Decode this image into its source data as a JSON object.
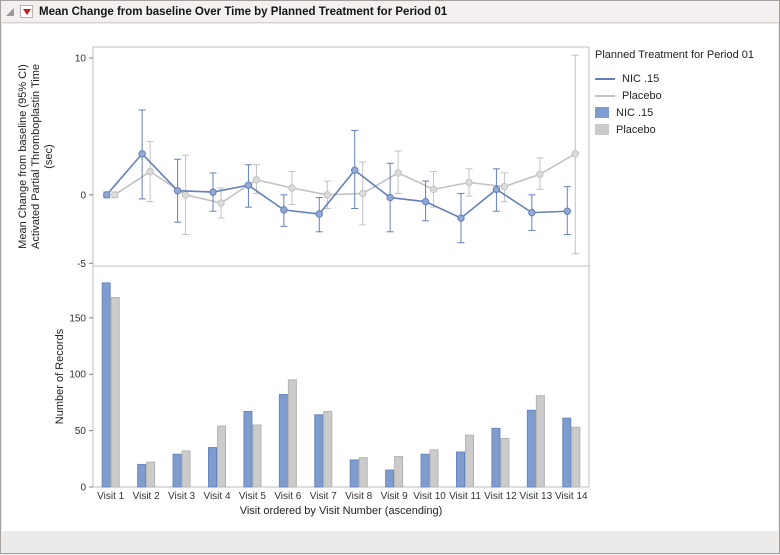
{
  "window": {
    "title": "Mean Change from baseline Over Time by Planned Treatment for Period 01"
  },
  "legend": {
    "title": "Planned Treatment for Period 01",
    "items": [
      {
        "label": "NIC .15",
        "type": "line",
        "color": "#6480bb"
      },
      {
        "label": "Placebo",
        "type": "line",
        "color": "#c6c6c6"
      },
      {
        "label": "NIC .15",
        "type": "bar",
        "color": "#7e9ccd"
      },
      {
        "label": "Placebo",
        "type": "bar",
        "color": "#cbcbcb"
      }
    ]
  },
  "chart_data": [
    {
      "type": "line",
      "title": "Mean Change from baseline Over Time by Planned Treatment for Period 01",
      "ylabel_lines": [
        "Mean Change from baseline (95% CI)",
        "Activated Partial Thromboplastin Time",
        "(sec)"
      ],
      "ylim": [
        -5.2,
        10.8
      ],
      "yticks": [
        10,
        0,
        -5
      ],
      "grid": false,
      "legend_position": "right",
      "x": [
        "Visit 1",
        "Visit 2",
        "Visit 3",
        "Visit 4",
        "Visit 5",
        "Visit 6",
        "Visit 7",
        "Visit 8",
        "Visit 9",
        "Visit 10",
        "Visit 11",
        "Visit 12",
        "Visit 13",
        "Visit 14"
      ],
      "series": [
        {
          "name": "NIC .15",
          "color": "#6480bb",
          "marker_fill": "#93a8d2",
          "values": [
            0,
            3.0,
            0.3,
            0.2,
            0.7,
            -1.1,
            -1.4,
            1.8,
            -0.2,
            -0.5,
            -1.7,
            0.4,
            -1.3,
            -1.2
          ],
          "ci_low": [
            -0.2,
            -0.3,
            -2.0,
            -1.2,
            -0.9,
            -2.3,
            -2.7,
            -1.0,
            -2.7,
            -1.9,
            -3.5,
            -1.2,
            -2.6,
            -2.9
          ],
          "ci_high": [
            0.2,
            6.2,
            2.6,
            1.6,
            2.2,
            0.0,
            -0.2,
            4.7,
            2.3,
            1.0,
            0.1,
            1.9,
            0.0,
            0.6
          ]
        },
        {
          "name": "Placebo",
          "color": "#c2c2c2",
          "marker_fill": "#dcdcdc",
          "values": [
            0,
            1.7,
            0.0,
            -0.6,
            1.1,
            0.5,
            0.0,
            0.1,
            1.6,
            0.4,
            0.9,
            0.6,
            1.5,
            3.0
          ],
          "ci_low": [
            -0.2,
            -0.5,
            -2.9,
            -1.7,
            0.1,
            -0.7,
            -1.0,
            -2.2,
            0.1,
            -0.9,
            -0.1,
            -0.5,
            0.4,
            -4.3
          ],
          "ci_high": [
            0.2,
            3.9,
            2.9,
            0.5,
            2.2,
            1.7,
            1.0,
            2.4,
            3.2,
            1.7,
            1.9,
            1.6,
            2.7,
            10.2
          ]
        }
      ]
    },
    {
      "type": "bar",
      "ylabel": "Number of Records",
      "xlabel": "Visit ordered by Visit Number (ascending)",
      "ylim": [
        0,
        196
      ],
      "yticks": [
        0,
        50,
        100,
        150
      ],
      "grid": false,
      "categories": [
        "Visit 1",
        "Visit 2",
        "Visit 3",
        "Visit 4",
        "Visit 5",
        "Visit 6",
        "Visit 7",
        "Visit 8",
        "Visit 9",
        "Visit 10",
        "Visit 11",
        "Visit 12",
        "Visit 13",
        "Visit 14"
      ],
      "series": [
        {
          "name": "NIC .15",
          "color": "#7e9ccd",
          "edge": "#6a87bd",
          "values": [
            181,
            20,
            29,
            35,
            67,
            82,
            64,
            24,
            15,
            29,
            31,
            52,
            68,
            61
          ]
        },
        {
          "name": "Placebo",
          "color": "#cbcbcb",
          "edge": "#b3b3b3",
          "values": [
            168,
            22,
            32,
            54,
            55,
            95,
            67,
            26,
            27,
            33,
            46,
            43,
            81,
            53
          ]
        }
      ]
    }
  ]
}
